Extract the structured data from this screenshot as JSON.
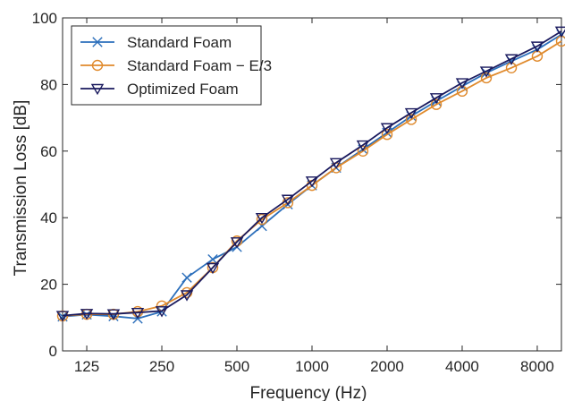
{
  "chart_data": {
    "type": "line",
    "xlabel": "Frequency (Hz)",
    "ylabel": "Transmission Loss [dB]",
    "x_scale": "log",
    "xlim": [
      100,
      10000
    ],
    "ylim": [
      0,
      100
    ],
    "x_ticks": [
      125,
      250,
      500,
      1000,
      2000,
      4000,
      8000
    ],
    "x_tick_labels": [
      "125",
      "250",
      "500",
      "1000",
      "2000",
      "4000",
      "8000"
    ],
    "y_ticks": [
      0,
      20,
      40,
      60,
      80,
      100
    ],
    "y_tick_labels": [
      "0",
      "20",
      "40",
      "60",
      "80",
      "100"
    ],
    "grid": false,
    "legend_position": "top-left",
    "x": [
      100,
      125,
      160,
      200,
      250,
      315,
      400,
      500,
      630,
      800,
      1000,
      1250,
      1600,
      2000,
      2500,
      3150,
      4000,
      5000,
      6300,
      8000,
      10000
    ],
    "series": [
      {
        "name": "Standard Foam",
        "color": "#2c6fbb",
        "marker": "x",
        "values": [
          10.3,
          10.9,
          10.4,
          9.7,
          11.8,
          22.0,
          27.5,
          31.2,
          37.5,
          44.0,
          49.7,
          55.0,
          60.5,
          65.5,
          70.5,
          75.0,
          79.5,
          83.5,
          87.0,
          90.5,
          95.0
        ]
      },
      {
        "name": "Standard Foam − E/3",
        "color": "#e08a2c",
        "marker": "circle",
        "values": [
          10.5,
          11.0,
          11.0,
          11.8,
          13.5,
          17.5,
          25.0,
          33.0,
          39.5,
          44.5,
          49.7,
          55.0,
          60.0,
          65.0,
          69.5,
          74.0,
          78.0,
          82.0,
          85.0,
          88.5,
          93.0
        ]
      },
      {
        "name": "Optimized Foam",
        "color": "#1a1a5e",
        "marker": "triangle-down",
        "values": [
          10.6,
          11.2,
          11.1,
          11.5,
          12.0,
          16.8,
          25.0,
          32.7,
          40.0,
          45.5,
          51.0,
          56.5,
          61.8,
          67.0,
          71.5,
          76.0,
          80.5,
          84.0,
          87.7,
          91.5,
          96.0
        ]
      }
    ]
  }
}
